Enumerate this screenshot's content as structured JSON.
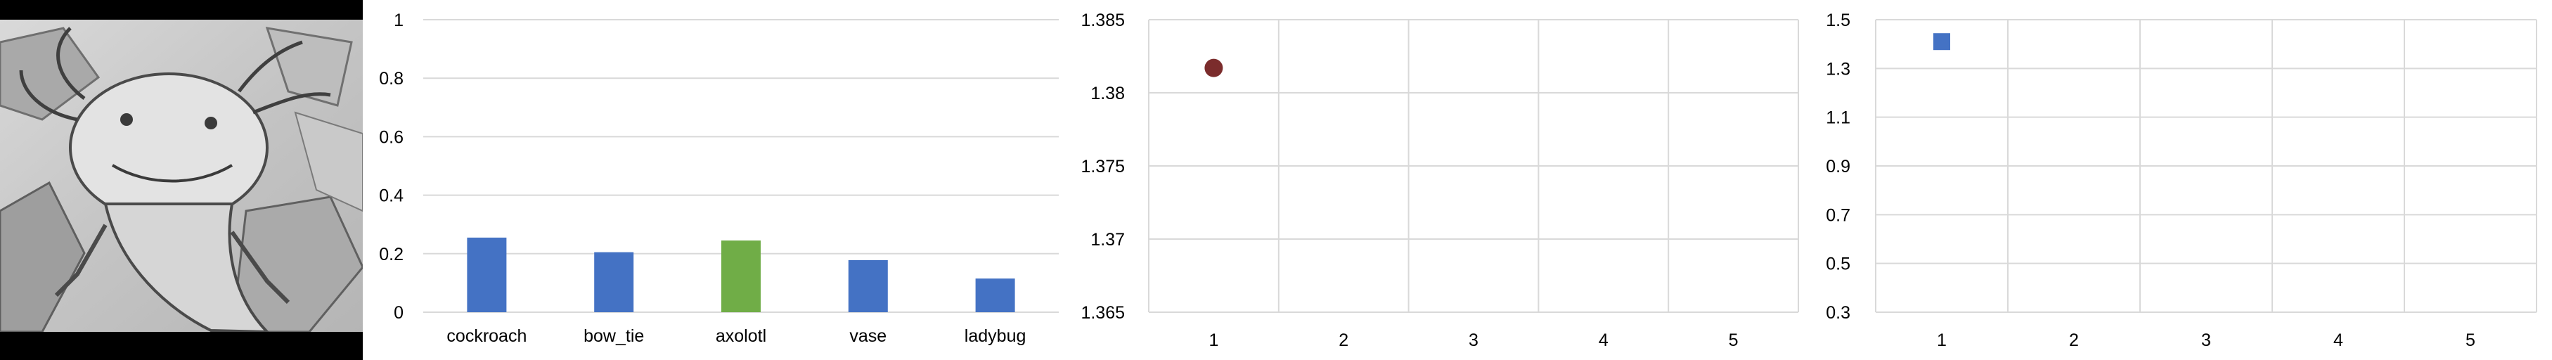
{
  "photo": {
    "depicts": "pencil drawing of an axolotl"
  },
  "chart_data": [
    {
      "type": "bar",
      "categories": [
        "cockroach",
        "bow_tie",
        "axolotl",
        "vase",
        "ladybug"
      ],
      "values": [
        0.255,
        0.205,
        0.245,
        0.178,
        0.115
      ],
      "colors": [
        "#4472C4",
        "#4472C4",
        "#70AD47",
        "#4472C4",
        "#4472C4"
      ],
      "ylim": [
        0,
        1
      ],
      "yticks": [
        "0",
        "0.2",
        "0.4",
        "0.6",
        "0.8",
        "1"
      ],
      "grid": true
    },
    {
      "type": "scatter",
      "x": [
        1
      ],
      "y": [
        1.3817
      ],
      "marker": "circle",
      "color": "#7B2C2C",
      "xlim": [
        0.5,
        5.5
      ],
      "ylim": [
        1.365,
        1.385
      ],
      "xticks": [
        "1",
        "2",
        "3",
        "4",
        "5"
      ],
      "yticks": [
        "1.365",
        "1.37",
        "1.375",
        "1.38",
        "1.385"
      ],
      "grid": true
    },
    {
      "type": "scatter",
      "x": [
        1
      ],
      "y": [
        1.41
      ],
      "marker": "square",
      "color": "#4472C4",
      "xlim": [
        0.5,
        5.5
      ],
      "ylim": [
        0.3,
        1.5
      ],
      "xticks": [
        "1",
        "2",
        "3",
        "4",
        "5"
      ],
      "yticks": [
        "0.3",
        "0.5",
        "0.7",
        "0.9",
        "1.1",
        "1.3",
        "1.5"
      ],
      "grid": true
    }
  ]
}
